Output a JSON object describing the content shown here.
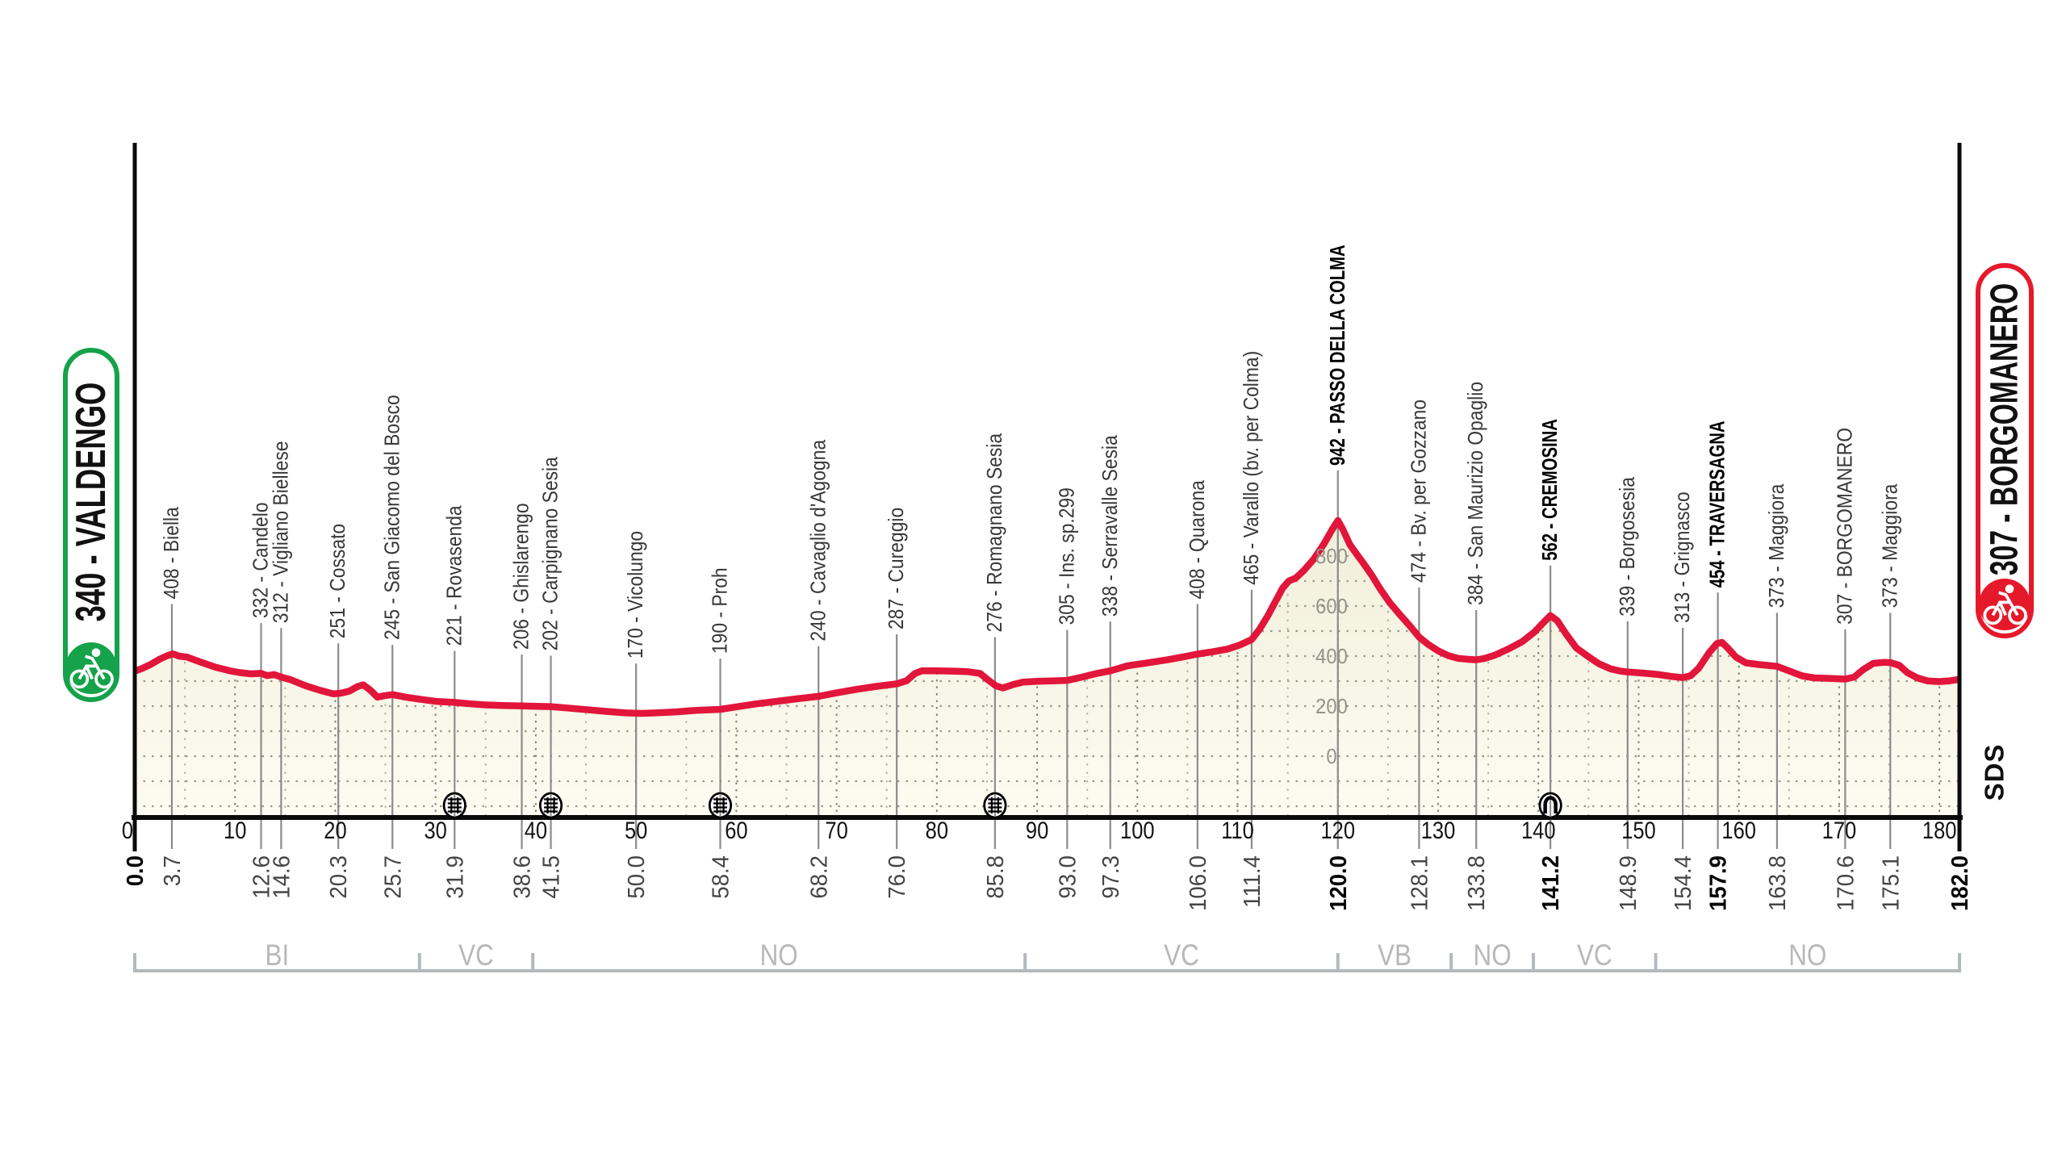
{
  "badges": {
    "start": {
      "text": "340 - VALDENGO",
      "color": "#15a24a",
      "icon": "cyclist-icon"
    },
    "finish": {
      "text": "307 - BORGOMANERO",
      "color": "#e6192b",
      "icon": "cyclist-icon"
    }
  },
  "sds_label": "SDS",
  "chart_data": {
    "type": "area",
    "title": "",
    "x_unit": "km",
    "x_range": [
      0,
      182
    ],
    "elevation_scale_labels": [
      0,
      200,
      400,
      600,
      800
    ],
    "x_axis_numbers": [
      0,
      10,
      20,
      30,
      40,
      50,
      60,
      70,
      80,
      90,
      100,
      110,
      120,
      130,
      140,
      150,
      160,
      170,
      180
    ],
    "waypoints": [
      {
        "km": 0.0,
        "elev": 340,
        "label": null,
        "km_label": "0.0",
        "bold": true
      },
      {
        "km": 3.7,
        "elev": 408,
        "label": "408 - Biella",
        "km_label": "3.7"
      },
      {
        "km": 12.6,
        "elev": 332,
        "label": "332 - Candelo",
        "km_label": "12.6"
      },
      {
        "km": 14.6,
        "elev": 312,
        "label": "312 - Vigliano Biellese",
        "km_label": "14.6"
      },
      {
        "km": 20.3,
        "elev": 251,
        "label": "251 - Cossato",
        "km_label": "20.3"
      },
      {
        "km": 25.7,
        "elev": 245,
        "label": "245 - San Giacomo del Bosco",
        "km_label": "25.7"
      },
      {
        "km": 31.9,
        "elev": 221,
        "label": "221 - Rovasenda",
        "km_label": "31.9",
        "icon": "railway"
      },
      {
        "km": 38.6,
        "elev": 206,
        "label": "206 - Ghislarengo",
        "km_label": "38.6"
      },
      {
        "km": 41.5,
        "elev": 202,
        "label": "202 - Carpignano Sesia",
        "km_label": "41.5",
        "icon": "railway"
      },
      {
        "km": 50.0,
        "elev": 170,
        "label": "170 - Vicolungo",
        "km_label": "50.0"
      },
      {
        "km": 58.4,
        "elev": 190,
        "label": "190 - Proh",
        "km_label": "58.4",
        "icon": "railway"
      },
      {
        "km": 68.2,
        "elev": 240,
        "label": "240 - Cavaglio d'Agogna",
        "km_label": "68.2"
      },
      {
        "km": 76.0,
        "elev": 287,
        "label": "287 - Cureggio",
        "km_label": "76.0"
      },
      {
        "km": 85.8,
        "elev": 276,
        "label": "276 - Romagnano Sesia",
        "km_label": "85.8",
        "icon": "railway"
      },
      {
        "km": 93.0,
        "elev": 305,
        "label": "305 - Ins. sp.299",
        "km_label": "93.0"
      },
      {
        "km": 97.3,
        "elev": 338,
        "label": "338 - Serravalle Sesia",
        "km_label": "97.3"
      },
      {
        "km": 106.0,
        "elev": 408,
        "label": "408 - Quarona",
        "km_label": "106.0"
      },
      {
        "km": 111.4,
        "elev": 465,
        "label": "465 - Varallo (bv. per Colma)",
        "km_label": "111.4"
      },
      {
        "km": 120.0,
        "elev": 942,
        "label": "942 - PASSO DELLA COLMA",
        "km_label": "120.0",
        "bold": true
      },
      {
        "km": 128.1,
        "elev": 474,
        "label": "474 - Bv. per Gozzano",
        "km_label": "128.1"
      },
      {
        "km": 133.8,
        "elev": 384,
        "label": "384 - San Maurizio Opaglio",
        "km_label": "133.8"
      },
      {
        "km": 141.2,
        "elev": 562,
        "label": "562 - CREMOSINA",
        "km_label": "141.2",
        "bold": true,
        "icon": "tunnel"
      },
      {
        "km": 148.9,
        "elev": 339,
        "label": "339 - Borgosesia",
        "km_label": "148.9"
      },
      {
        "km": 154.4,
        "elev": 313,
        "label": "313 - Grignasco",
        "km_label": "154.4"
      },
      {
        "km": 157.9,
        "elev": 454,
        "label": "454 - TRAVERSAGNA",
        "km_label": "157.9",
        "bold": true
      },
      {
        "km": 163.8,
        "elev": 373,
        "label": "373 - Maggiora",
        "km_label": "163.8"
      },
      {
        "km": 170.6,
        "elev": 307,
        "label": "307 - BORGOMANERO",
        "km_label": "170.6"
      },
      {
        "km": 175.1,
        "elev": 373,
        "label": "373 - Maggiora",
        "km_label": "175.1"
      },
      {
        "km": 182.0,
        "elev": 307,
        "label": null,
        "km_label": "182.0",
        "bold": true
      }
    ],
    "provinces": [
      {
        "label": "BI",
        "from": 0,
        "to": 28.4
      },
      {
        "label": "VC",
        "from": 28.4,
        "to": 39.7
      },
      {
        "label": "NO",
        "from": 39.7,
        "to": 88.8
      },
      {
        "label": "VC",
        "from": 88.8,
        "to": 120.0
      },
      {
        "label": "VB",
        "from": 120.0,
        "to": 131.3
      },
      {
        "label": "NO",
        "from": 131.3,
        "to": 139.5
      },
      {
        "label": "VC",
        "from": 139.5,
        "to": 151.7
      },
      {
        "label": "NO",
        "from": 151.7,
        "to": 182.0
      }
    ],
    "profile": [
      [
        0,
        340
      ],
      [
        0.7,
        350
      ],
      [
        1.5,
        365
      ],
      [
        2.5,
        388
      ],
      [
        3.2,
        401
      ],
      [
        3.8,
        409
      ],
      [
        4.4,
        400
      ],
      [
        5.2,
        396
      ],
      [
        6.5,
        377
      ],
      [
        8,
        356
      ],
      [
        9.5,
        341
      ],
      [
        10.5,
        334
      ],
      [
        11.6,
        329
      ],
      [
        12.6,
        331
      ],
      [
        13.2,
        322
      ],
      [
        13.9,
        326
      ],
      [
        14.6,
        316
      ],
      [
        15.5,
        306
      ],
      [
        17,
        282
      ],
      [
        18.5,
        263
      ],
      [
        19.8,
        249
      ],
      [
        20.6,
        252
      ],
      [
        21.4,
        260
      ],
      [
        22.2,
        278
      ],
      [
        22.8,
        285
      ],
      [
        23.5,
        264
      ],
      [
        24.2,
        236
      ],
      [
        24.8,
        241
      ],
      [
        25.7,
        246
      ],
      [
        27,
        236
      ],
      [
        28.5,
        227
      ],
      [
        30,
        219
      ],
      [
        31.9,
        215
      ],
      [
        33.5,
        209
      ],
      [
        35,
        205
      ],
      [
        37,
        202
      ],
      [
        38.6,
        201
      ],
      [
        40,
        199
      ],
      [
        41.5,
        198
      ],
      [
        43,
        193
      ],
      [
        45,
        186
      ],
      [
        47,
        179
      ],
      [
        49,
        173
      ],
      [
        50.5,
        171
      ],
      [
        52,
        173
      ],
      [
        54,
        177
      ],
      [
        56,
        183
      ],
      [
        58.4,
        187
      ],
      [
        60,
        197
      ],
      [
        62,
        209
      ],
      [
        64,
        219
      ],
      [
        66,
        229
      ],
      [
        68.2,
        239
      ],
      [
        70,
        253
      ],
      [
        72,
        267
      ],
      [
        74,
        279
      ],
      [
        76,
        289
      ],
      [
        77,
        302
      ],
      [
        77.8,
        330
      ],
      [
        78.5,
        341
      ],
      [
        80,
        341
      ],
      [
        81.5,
        340
      ],
      [
        83,
        338
      ],
      [
        84.3,
        331
      ],
      [
        85.2,
        302
      ],
      [
        85.9,
        281
      ],
      [
        86.6,
        273
      ],
      [
        87.6,
        286
      ],
      [
        88.6,
        296
      ],
      [
        90,
        299
      ],
      [
        91.5,
        301
      ],
      [
        93,
        303
      ],
      [
        94.5,
        316
      ],
      [
        96,
        331
      ],
      [
        97.3,
        341
      ],
      [
        99,
        361
      ],
      [
        101,
        373
      ],
      [
        103,
        385
      ],
      [
        104.5,
        396
      ],
      [
        106,
        408
      ],
      [
        107.5,
        417
      ],
      [
        109,
        428
      ],
      [
        110.2,
        444
      ],
      [
        111.4,
        466
      ],
      [
        112.2,
        508
      ],
      [
        113,
        560
      ],
      [
        113.8,
        620
      ],
      [
        114.5,
        672
      ],
      [
        115.1,
        700
      ],
      [
        115.8,
        712
      ],
      [
        116.6,
        742
      ],
      [
        117.6,
        788
      ],
      [
        118.6,
        848
      ],
      [
        119.4,
        904
      ],
      [
        120,
        942
      ],
      [
        120.5,
        906
      ],
      [
        121.2,
        845
      ],
      [
        121.9,
        806
      ],
      [
        122.6,
        768
      ],
      [
        123.4,
        722
      ],
      [
        124.2,
        670
      ],
      [
        125.2,
        612
      ],
      [
        126.2,
        565
      ],
      [
        127.2,
        520
      ],
      [
        128.1,
        476
      ],
      [
        129,
        447
      ],
      [
        130,
        421
      ],
      [
        131,
        402
      ],
      [
        132,
        391
      ],
      [
        133,
        387
      ],
      [
        133.8,
        385
      ],
      [
        134.6,
        390
      ],
      [
        135.6,
        403
      ],
      [
        137,
        428
      ],
      [
        138.4,
        458
      ],
      [
        139.6,
        496
      ],
      [
        140.6,
        538
      ],
      [
        141.2,
        562
      ],
      [
        141.9,
        541
      ],
      [
        142.8,
        486
      ],
      [
        143.8,
        432
      ],
      [
        144.8,
        403
      ],
      [
        146,
        370
      ],
      [
        147.2,
        349
      ],
      [
        148.2,
        340
      ],
      [
        149,
        336
      ],
      [
        150.5,
        332
      ],
      [
        152,
        326
      ],
      [
        153.2,
        319
      ],
      [
        154.4,
        314
      ],
      [
        155.2,
        322
      ],
      [
        156,
        352
      ],
      [
        157,
        412
      ],
      [
        157.8,
        450
      ],
      [
        158.3,
        455
      ],
      [
        158.9,
        432
      ],
      [
        159.7,
        396
      ],
      [
        160.7,
        373
      ],
      [
        162,
        366
      ],
      [
        163.8,
        359
      ],
      [
        165,
        341
      ],
      [
        166.3,
        321
      ],
      [
        167.5,
        313
      ],
      [
        169,
        311
      ],
      [
        170.6,
        308
      ],
      [
        171.5,
        316
      ],
      [
        172.4,
        346
      ],
      [
        173.4,
        371
      ],
      [
        174.4,
        375
      ],
      [
        175.1,
        374
      ],
      [
        176,
        363
      ],
      [
        176.8,
        334
      ],
      [
        177.8,
        313
      ],
      [
        178.8,
        301
      ],
      [
        180,
        298
      ],
      [
        181,
        301
      ],
      [
        182,
        307
      ]
    ],
    "colors": {
      "line": "#e2153a",
      "fill_top": "#f1eeda",
      "fill_bottom": "#fdfcf2"
    }
  }
}
